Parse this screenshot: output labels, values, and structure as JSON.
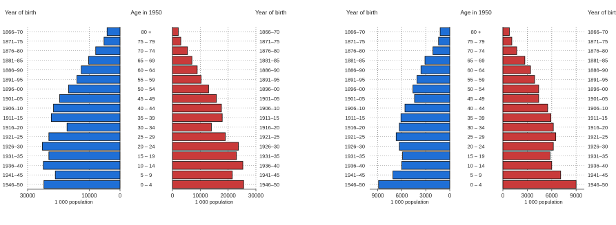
{
  "chart_data": [
    {
      "type": "bar",
      "orientation": "horizontal",
      "layout": "population-pyramid",
      "header_left": "Year of birth",
      "header_center": "Age in 1950",
      "header_right": "Year of birth",
      "xlabel": "1 000 population",
      "categories_left": [
        "1866–70",
        "1871–75",
        "1876–80",
        "1881–85",
        "1886–90",
        "1891–95",
        "1896–00",
        "1901–05",
        "1906–10",
        "1911–15",
        "1916–20",
        "1921–25",
        "1926–30",
        "1931–35",
        "1936–40",
        "1941–45",
        "1946–50"
      ],
      "categories_center": [
        "80 +",
        "75 – 79",
        "70 – 74",
        "65 – 69",
        "60 – 64",
        "55 – 59",
        "50 – 54",
        "45 – 49",
        "40 – 44",
        "35 – 39",
        "30 – 34",
        "25 – 29",
        "20 – 24",
        "15 – 19",
        "10 – 14",
        "5 – 9",
        "0 – 4"
      ],
      "categories_right": [
        "1866–70",
        "1871–75",
        "1876–80",
        "1881–85",
        "1886–90",
        "1891–95",
        "1896–00",
        "1901–05",
        "1906–10",
        "1911–15",
        "1916–20",
        "1921–25",
        "1926–30",
        "1931–35",
        "1936–40",
        "1941–45",
        "1946–50"
      ],
      "series": [
        {
          "side": "left",
          "color": "#1f6fd6",
          "xlim": [
            30000,
            0
          ],
          "ticks": [
            30000,
            10000,
            0
          ],
          "tick_labels": [
            "30000",
            "10000",
            "0"
          ],
          "values": [
            4200,
            5200,
            7900,
            10200,
            12600,
            14000,
            16700,
            19600,
            21600,
            22300,
            17200,
            23100,
            25200,
            23100,
            24900,
            21000,
            24700
          ]
        },
        {
          "side": "right",
          "color": "#c93a3a",
          "xlim": [
            0,
            30000
          ],
          "ticks": [
            0,
            10000,
            20000,
            30000
          ],
          "tick_labels": [
            "0",
            "10000",
            "20000",
            "30000"
          ],
          "values": [
            2100,
            3000,
            5400,
            7000,
            8900,
            10300,
            13000,
            15800,
            17600,
            17900,
            14000,
            19000,
            23700,
            23000,
            25300,
            21500,
            25600
          ]
        }
      ]
    },
    {
      "type": "bar",
      "orientation": "horizontal",
      "layout": "population-pyramid",
      "header_left": "Year of birth",
      "header_center": "Age in 1950",
      "header_right": "Year of birth",
      "xlabel": "1 000 population",
      "categories_left": [
        "1866–70",
        "1871–75",
        "1876–80",
        "1881–85",
        "1886–90",
        "1891–95",
        "1896–00",
        "1901–05",
        "1906–10",
        "1911–15",
        "1916–20",
        "1921–25",
        "1926–30",
        "1931–35",
        "1936–40",
        "1941–45",
        "1946–50"
      ],
      "categories_center": [
        "80 +",
        "75 – 79",
        "70 – 74",
        "65 – 69",
        "60 – 64",
        "55 – 59",
        "50 – 54",
        "45 – 49",
        "40 – 44",
        "35 – 39",
        "30 – 34",
        "25 – 29",
        "20 – 24",
        "15 – 19",
        "10 – 14",
        "5 – 9",
        "0 – 4"
      ],
      "categories_right": [
        "1866–70",
        "1871–75",
        "1876–80",
        "1881–85",
        "1886–90",
        "1891–95",
        "1896–00",
        "1901–05",
        "1906–10",
        "1911–15",
        "1916–20",
        "1921–25",
        "1926–30",
        "1931–35",
        "1936–40",
        "1941–45",
        "1946–50"
      ],
      "series": [
        {
          "side": "left",
          "color": "#1f6fd6",
          "xlim": [
            10000,
            0
          ],
          "ticks": [
            9000,
            6000,
            3000,
            0
          ],
          "tick_labels": [
            "9000",
            "6000",
            "3000",
            "0"
          ],
          "values": [
            1200,
            1400,
            2100,
            3100,
            3600,
            4100,
            4600,
            4400,
            5600,
            6100,
            6300,
            6700,
            6300,
            5900,
            6000,
            7100,
            8900
          ]
        },
        {
          "side": "right",
          "color": "#c93a3a",
          "xlim": [
            0,
            10000
          ],
          "ticks": [
            0,
            3000,
            6000,
            9000
          ],
          "tick_labels": [
            "0",
            "3000",
            "6000",
            "9000"
          ],
          "values": [
            800,
            1100,
            1700,
            2700,
            3400,
            3900,
            4400,
            4400,
            5500,
            5900,
            6200,
            6500,
            6200,
            5800,
            6000,
            7100,
            9000
          ]
        }
      ]
    }
  ]
}
